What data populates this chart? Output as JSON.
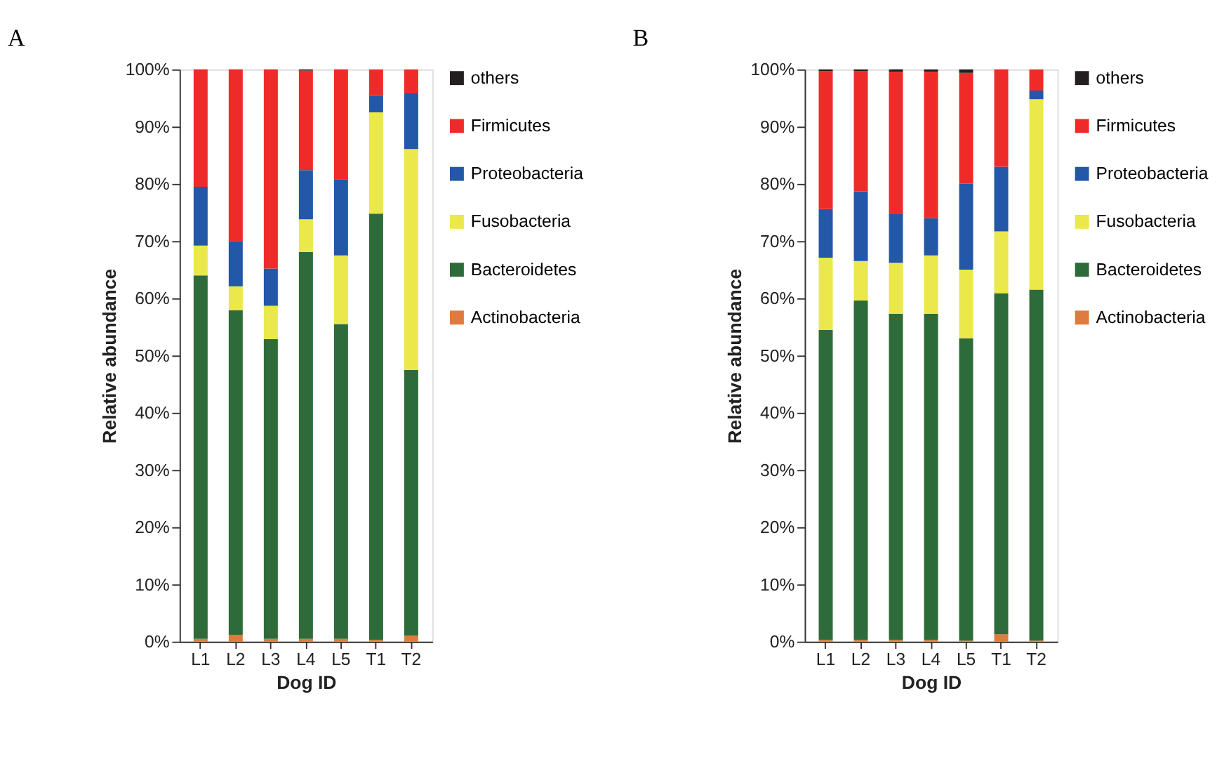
{
  "chart_data": [
    {
      "type": "bar",
      "title": "A",
      "xlabel": "Dog ID",
      "ylabel": "Relative abundance",
      "stacked": true,
      "legend": "right",
      "grid": false,
      "categories": [
        "L1",
        "L2",
        "L3",
        "L4",
        "L5",
        "T1",
        "T2"
      ],
      "ylim": [
        0,
        100
      ],
      "yticks": [
        {
          "value": 0,
          "label": "0%"
        },
        {
          "value": 10,
          "label": "10%"
        },
        {
          "value": 20,
          "label": "20%"
        },
        {
          "value": 30,
          "label": "30%"
        },
        {
          "value": 40,
          "label": "40%"
        },
        {
          "value": 50,
          "label": "50%"
        },
        {
          "value": 60,
          "label": "60%"
        },
        {
          "value": 70,
          "label": "70%"
        },
        {
          "value": 80,
          "label": "80%"
        },
        {
          "value": 90,
          "label": "90%"
        },
        {
          "value": 100,
          "label": "100%"
        }
      ],
      "series": [
        {
          "name": "Actinobacteria",
          "color": "#e07b3f",
          "values": [
            0.5,
            1.2,
            0.5,
            0.5,
            0.5,
            0.3,
            1.0
          ]
        },
        {
          "name": "Bacteroidetes",
          "color": "#2e6b3a",
          "values": [
            63.5,
            56.7,
            52.4,
            67.6,
            55.0,
            74.5,
            46.5
          ]
        },
        {
          "name": "Fusobacteria",
          "color": "#ebe84b",
          "values": [
            5.2,
            4.2,
            5.8,
            5.7,
            12.0,
            17.7,
            38.6
          ]
        },
        {
          "name": "Proteobacteria",
          "color": "#2357a8",
          "values": [
            10.3,
            7.9,
            6.5,
            8.6,
            13.3,
            3.0,
            9.7
          ]
        },
        {
          "name": "Firmicutes",
          "color": "#ef2b2a",
          "values": [
            20.5,
            30.0,
            34.8,
            17.4,
            19.2,
            4.5,
            4.2
          ]
        },
        {
          "name": "others",
          "color": "#231f20",
          "values": [
            null,
            null,
            null,
            0.2,
            null,
            null,
            null
          ]
        }
      ]
    },
    {
      "type": "bar",
      "title": "B",
      "xlabel": "Dog ID",
      "ylabel": "Relative abundance",
      "stacked": true,
      "legend": "right",
      "grid": false,
      "categories": [
        "L1",
        "L2",
        "L3",
        "L4",
        "L5",
        "T1",
        "T2"
      ],
      "ylim": [
        0,
        100
      ],
      "yticks": [
        {
          "value": 0,
          "label": "0%"
        },
        {
          "value": 10,
          "label": "10%"
        },
        {
          "value": 20,
          "label": "20%"
        },
        {
          "value": 30,
          "label": "30%"
        },
        {
          "value": 40,
          "label": "40%"
        },
        {
          "value": 50,
          "label": "50%"
        },
        {
          "value": 60,
          "label": "60%"
        },
        {
          "value": 70,
          "label": "70%"
        },
        {
          "value": 80,
          "label": "80%"
        },
        {
          "value": 90,
          "label": "90%"
        },
        {
          "value": 100,
          "label": "100%"
        }
      ],
      "series": [
        {
          "name": "Actinobacteria",
          "color": "#e07b3f",
          "values": [
            0.3,
            0.3,
            0.3,
            0.3,
            0.2,
            1.3,
            0.2
          ]
        },
        {
          "name": "Bacteroidetes",
          "color": "#2e6b3a",
          "values": [
            54.2,
            59.3,
            57.0,
            57.0,
            52.8,
            59.6,
            61.3
          ]
        },
        {
          "name": "Fusobacteria",
          "color": "#ebe84b",
          "values": [
            12.6,
            6.9,
            8.9,
            10.2,
            12.0,
            10.8,
            33.3
          ]
        },
        {
          "name": "Proteobacteria",
          "color": "#2357a8",
          "values": [
            8.5,
            12.2,
            8.5,
            6.5,
            15.0,
            11.3,
            1.5
          ]
        },
        {
          "name": "Firmicutes",
          "color": "#ef2b2a",
          "values": [
            24.1,
            21.0,
            24.9,
            25.6,
            19.4,
            17.0,
            3.7
          ]
        },
        {
          "name": "others",
          "color": "#231f20",
          "values": [
            0.3,
            0.3,
            0.4,
            0.4,
            0.6,
            null,
            null
          ]
        }
      ]
    }
  ]
}
